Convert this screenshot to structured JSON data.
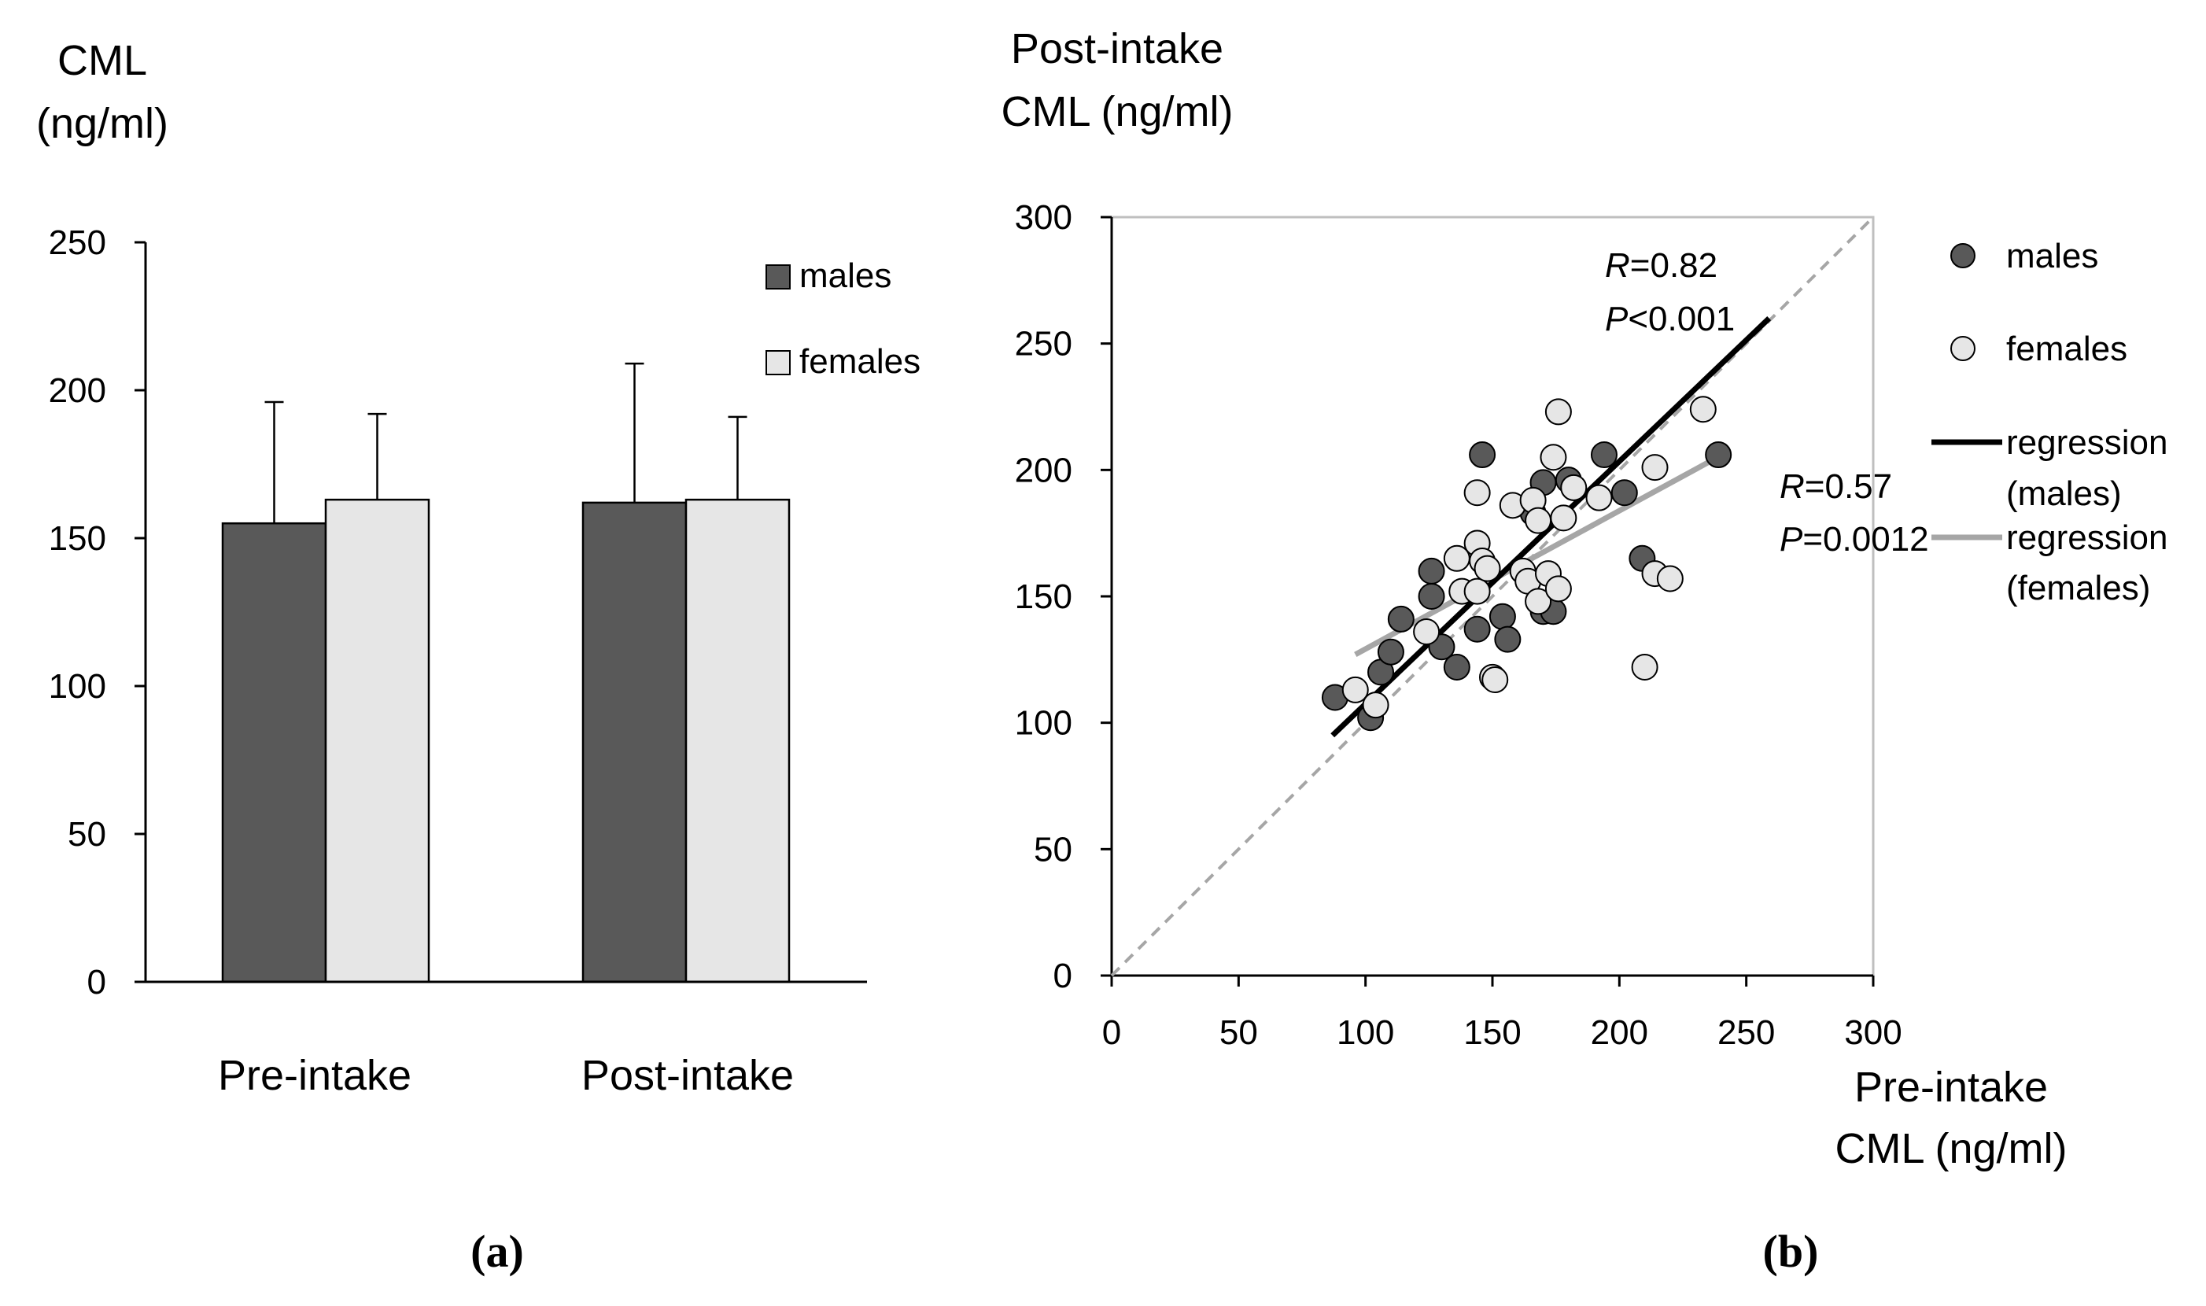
{
  "panels": {
    "a": "(a)",
    "b": "(b)"
  },
  "chart_data": [
    {
      "id": "a",
      "type": "bar",
      "ylabel_line1": "CML",
      "ylabel_line2": "(ng/ml)",
      "categories": [
        "Pre-intake",
        "Post-intake"
      ],
      "series": [
        {
          "name": "males",
          "color": "#595959",
          "values": [
            155,
            162
          ],
          "errors": [
            41,
            47
          ]
        },
        {
          "name": "females",
          "color": "#e6e6e6",
          "values": [
            163,
            163
          ],
          "errors": [
            29,
            28
          ]
        }
      ],
      "ylim": [
        0,
        250
      ],
      "yticks": [
        "0",
        "50",
        "100",
        "150",
        "200",
        "250"
      ],
      "legend_position": "top-right"
    },
    {
      "id": "b",
      "type": "scatter",
      "ylabel_line1": "Post-intake",
      "ylabel_line2": "CML (ng/ml)",
      "xlabel_line1": "Pre-intake",
      "xlabel_line2": "CML  (ng/ml)",
      "xlim": [
        0,
        300
      ],
      "ylim": [
        0,
        300
      ],
      "xticks": [
        "0",
        "50",
        "100",
        "150",
        "200",
        "250",
        "300"
      ],
      "yticks": [
        "0",
        "50",
        "100",
        "150",
        "200",
        "250",
        "300"
      ],
      "legend": {
        "males": "males",
        "females": "females",
        "reg_males_1": "regression",
        "reg_males_2": "(males)",
        "reg_females_1": "regression",
        "reg_females_2": "(females)"
      },
      "colors": {
        "males": "#595959",
        "females": "#e6e6e6",
        "reg_males": "#000000",
        "reg_females": "#a6a6a6",
        "identity": "#a6a6a6"
      },
      "males": [
        [
          88,
          110
        ],
        [
          102,
          102
        ],
        [
          106,
          120
        ],
        [
          110,
          128
        ],
        [
          114,
          141
        ],
        [
          126,
          160
        ],
        [
          126,
          150
        ],
        [
          130,
          130
        ],
        [
          136,
          122
        ],
        [
          144,
          137
        ],
        [
          146,
          206
        ],
        [
          154,
          142
        ],
        [
          156,
          133
        ],
        [
          166,
          183
        ],
        [
          170,
          195
        ],
        [
          170,
          144
        ],
        [
          174,
          144
        ],
        [
          180,
          196
        ],
        [
          194,
          206
        ],
        [
          202,
          191
        ],
        [
          209,
          165
        ],
        [
          239,
          206
        ]
      ],
      "females": [
        [
          96,
          113
        ],
        [
          104,
          107
        ],
        [
          124,
          136
        ],
        [
          136,
          165
        ],
        [
          138,
          152
        ],
        [
          144,
          191
        ],
        [
          144,
          171
        ],
        [
          144,
          152
        ],
        [
          146,
          164
        ],
        [
          148,
          161
        ],
        [
          150,
          118
        ],
        [
          151,
          117
        ],
        [
          158,
          186
        ],
        [
          162,
          160
        ],
        [
          164,
          156
        ],
        [
          166,
          188
        ],
        [
          168,
          148
        ],
        [
          168,
          180
        ],
        [
          172,
          159
        ],
        [
          174,
          205
        ],
        [
          176,
          153
        ],
        [
          176,
          223
        ],
        [
          178,
          181
        ],
        [
          182,
          193
        ],
        [
          192,
          189
        ],
        [
          210,
          122
        ],
        [
          214,
          159
        ],
        [
          214,
          201
        ],
        [
          220,
          157
        ],
        [
          233,
          224
        ]
      ],
      "regression_males": {
        "x": [
          87,
          259
        ],
        "y": [
          95,
          260
        ]
      },
      "regression_females": {
        "x": [
          96,
          235
        ],
        "y": [
          127,
          203
        ]
      },
      "annotations": [
        {
          "r_label": "R",
          "r_value": "=0.82",
          "p_label": "P",
          "p_value": "<0.001",
          "series": "males"
        },
        {
          "r_label": "R",
          "r_value": "=0.57",
          "p_label": "P",
          "p_value": "=0.0012",
          "series": "females"
        }
      ]
    }
  ]
}
